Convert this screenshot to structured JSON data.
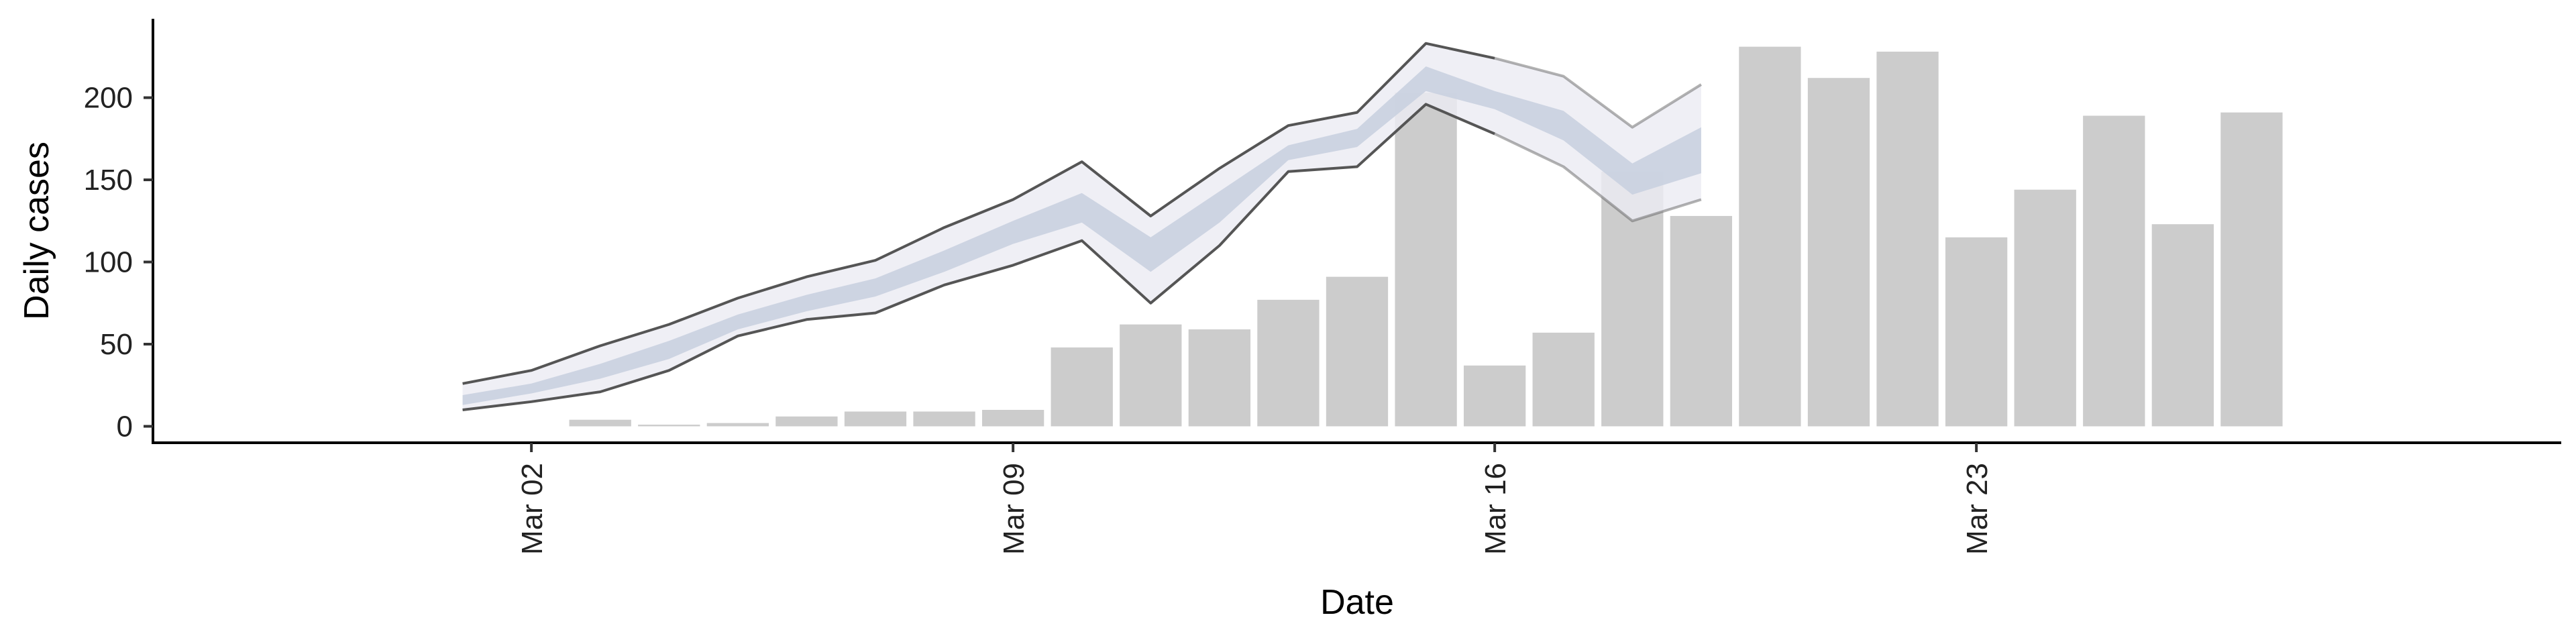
{
  "chart_data": {
    "type": "bar",
    "title": "",
    "xlabel": "Date",
    "ylabel": "Daily cases",
    "ylim": [
      -10,
      248
    ],
    "x_range": [
      "2020-02-25T12:00",
      "2020-03-31T12:00"
    ],
    "y_ticks": [
      0,
      50,
      100,
      150,
      200
    ],
    "x_ticks": [
      {
        "date": "2020-03-02",
        "label": "Mar 02"
      },
      {
        "date": "2020-03-09",
        "label": "Mar 09"
      },
      {
        "date": "2020-03-16",
        "label": "Mar 16"
      },
      {
        "date": "2020-03-23",
        "label": "Mar 23"
      }
    ],
    "grid": false,
    "bars": {
      "color": "#cccccc",
      "dates": [
        "2020-03-03",
        "2020-03-04",
        "2020-03-05",
        "2020-03-06",
        "2020-03-07",
        "2020-03-08",
        "2020-03-09",
        "2020-03-10",
        "2020-03-11",
        "2020-03-12",
        "2020-03-13",
        "2020-03-14",
        "2020-03-15",
        "2020-03-16",
        "2020-03-17",
        "2020-03-18",
        "2020-03-19",
        "2020-03-20",
        "2020-03-21",
        "2020-03-22",
        "2020-03-23",
        "2020-03-24",
        "2020-03-25",
        "2020-03-26",
        "2020-03-27"
      ],
      "values": [
        4,
        1,
        2,
        6,
        9,
        9,
        10,
        48,
        62,
        59,
        77,
        91,
        203,
        37,
        57,
        155,
        128,
        231,
        212,
        228,
        115,
        144,
        189,
        123,
        191
      ]
    },
    "bands": {
      "dates": [
        "2020-03-01",
        "2020-03-02",
        "2020-03-03",
        "2020-03-04",
        "2020-03-05",
        "2020-03-06",
        "2020-03-07",
        "2020-03-08",
        "2020-03-09",
        "2020-03-10",
        "2020-03-11",
        "2020-03-12",
        "2020-03-13",
        "2020-03-14",
        "2020-03-15",
        "2020-03-16",
        "2020-03-17",
        "2020-03-18",
        "2020-03-19"
      ],
      "outer_upper": [
        26,
        34,
        49,
        62,
        78,
        91,
        101,
        121,
        138,
        161,
        128,
        157,
        183,
        191,
        233,
        224,
        213,
        182,
        208
      ],
      "outer_lower": [
        10,
        15,
        21,
        34,
        55,
        65,
        69,
        86,
        98,
        113,
        75,
        110,
        155,
        158,
        196,
        178,
        158,
        125,
        138
      ],
      "inner_upper": [
        19,
        26,
        38,
        52,
        68,
        80,
        90,
        107,
        125,
        142,
        115,
        143,
        171,
        181,
        219,
        204,
        192,
        160,
        182
      ],
      "inner_lower": [
        13,
        20,
        29,
        41,
        59,
        70,
        79,
        94,
        111,
        124,
        94,
        124,
        162,
        170,
        204,
        193,
        174,
        141,
        154
      ],
      "outer_fill": "#ebecf3",
      "inner_fill": "#c9d0e0",
      "line_color": "#555555"
    }
  }
}
